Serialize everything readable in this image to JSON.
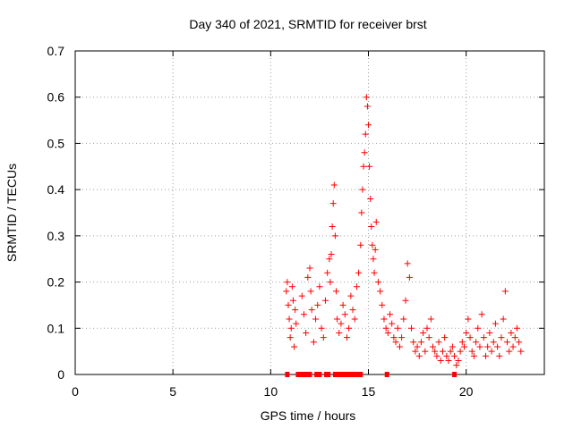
{
  "chart_data": {
    "type": "scatter",
    "title": "Day 340 of 2021, SRMTID for receiver brst",
    "xlabel": "GPS time / hours",
    "ylabel": "SRMTID / TECUs",
    "xlim": [
      0,
      24
    ],
    "ylim": [
      0,
      0.7
    ],
    "xticks": [
      "0",
      "5",
      "10",
      "15",
      "20"
    ],
    "yticks": [
      "0",
      "0.1",
      "0.2",
      "0.3",
      "0.4",
      "0.5",
      "0.6",
      "0.7"
    ],
    "grid": true,
    "marker": "+",
    "color": "#ff0000",
    "zero_marker": "square",
    "series": [
      {
        "name": "SRMTID",
        "x": [
          10.8,
          10.85,
          10.9,
          10.95,
          11.0,
          11.05,
          11.1,
          11.15,
          11.2,
          11.25,
          11.3,
          11.6,
          11.7,
          11.8,
          11.9,
          12.0,
          12.05,
          12.1,
          12.2,
          12.3,
          12.4,
          12.5,
          12.6,
          12.7,
          12.8,
          12.9,
          13.0,
          13.05,
          13.1,
          13.15,
          13.2,
          13.25,
          13.3,
          13.35,
          13.4,
          13.5,
          13.6,
          13.7,
          13.8,
          13.9,
          14.0,
          14.1,
          14.2,
          14.3,
          14.4,
          14.5,
          14.6,
          14.65,
          14.7,
          14.75,
          14.8,
          14.85,
          14.9,
          14.95,
          15.0,
          15.05,
          15.1,
          15.15,
          15.2,
          15.25,
          15.3,
          15.35,
          15.4,
          15.5,
          15.6,
          15.7,
          15.8,
          15.9,
          16.0,
          16.1,
          16.2,
          16.3,
          16.4,
          16.5,
          16.6,
          16.7,
          16.8,
          16.9,
          17.0,
          17.1,
          17.2,
          17.3,
          17.4,
          17.5,
          17.6,
          17.7,
          17.8,
          17.9,
          18.0,
          18.1,
          18.2,
          18.3,
          18.4,
          18.5,
          18.6,
          18.7,
          18.8,
          18.9,
          19.0,
          19.1,
          19.2,
          19.3,
          19.4,
          19.5,
          19.6,
          19.7,
          19.8,
          19.9,
          20.0,
          20.1,
          20.2,
          20.3,
          20.4,
          20.5,
          20.6,
          20.7,
          20.8,
          20.9,
          21.0,
          21.1,
          21.2,
          21.3,
          21.4,
          21.5,
          21.6,
          21.7,
          21.8,
          21.9,
          22.0,
          22.1,
          22.2,
          22.3,
          22.4,
          22.5,
          22.6,
          22.7,
          22.8
        ],
        "y": [
          0.18,
          0.2,
          0.15,
          0.12,
          0.08,
          0.1,
          0.19,
          0.16,
          0.06,
          0.14,
          0.11,
          0.17,
          0.13,
          0.09,
          0.21,
          0.23,
          0.18,
          0.14,
          0.07,
          0.12,
          0.15,
          0.19,
          0.1,
          0.08,
          0.16,
          0.22,
          0.25,
          0.2,
          0.26,
          0.32,
          0.37,
          0.41,
          0.3,
          0.18,
          0.12,
          0.09,
          0.11,
          0.15,
          0.13,
          0.08,
          0.1,
          0.17,
          0.14,
          0.12,
          0.19,
          0.22,
          0.28,
          0.35,
          0.4,
          0.45,
          0.48,
          0.52,
          0.6,
          0.58,
          0.54,
          0.45,
          0.38,
          0.32,
          0.28,
          0.25,
          0.22,
          0.27,
          0.33,
          0.2,
          0.18,
          0.15,
          0.12,
          0.1,
          0.09,
          0.13,
          0.11,
          0.08,
          0.07,
          0.1,
          0.06,
          0.08,
          0.12,
          0.16,
          0.24,
          0.21,
          0.1,
          0.07,
          0.05,
          0.06,
          0.04,
          0.07,
          0.09,
          0.05,
          0.1,
          0.08,
          0.12,
          0.06,
          0.05,
          0.04,
          0.07,
          0.03,
          0.05,
          0.08,
          0.04,
          0.03,
          0.05,
          0.06,
          0.04,
          0.02,
          0.03,
          0.05,
          0.07,
          0.06,
          0.09,
          0.12,
          0.08,
          0.05,
          0.04,
          0.07,
          0.1,
          0.06,
          0.13,
          0.08,
          0.04,
          0.06,
          0.09,
          0.05,
          0.07,
          0.11,
          0.06,
          0.04,
          0.08,
          0.12,
          0.18,
          0.07,
          0.05,
          0.09,
          0.06,
          0.08,
          0.1,
          0.07,
          0.05
        ],
        "zeros_x": [
          10.85,
          11.4,
          11.55,
          11.7,
          11.8,
          11.9,
          12.0,
          12.35,
          12.5,
          12.85,
          12.95,
          13.3,
          13.45,
          13.55,
          13.65,
          13.75,
          13.9,
          14.0,
          14.05,
          14.2,
          14.3,
          14.45,
          14.6,
          15.95,
          19.4
        ]
      }
    ]
  }
}
